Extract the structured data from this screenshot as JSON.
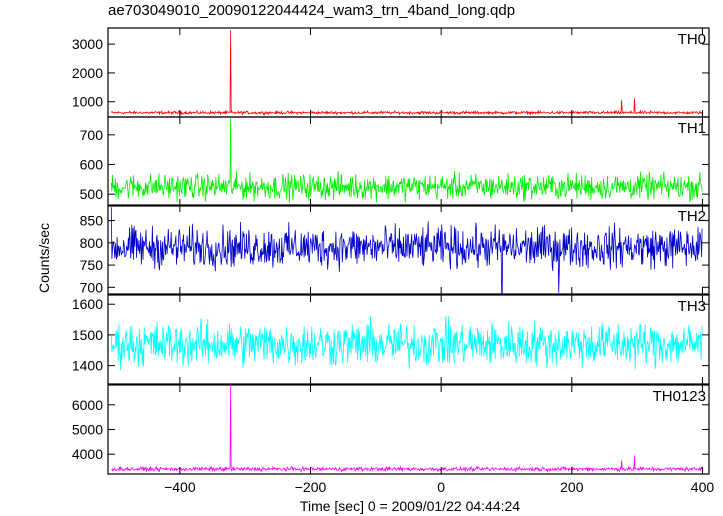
{
  "title": "ae703049010_20090122044424_wam3_trn_4band_long.qdp",
  "ylabel": "Counts/sec",
  "xlabel": "Time [sec] 0 = 2009/01/22 04:44:24",
  "chart_data": {
    "type": "line",
    "title": "ae703049010_20090122044424_wam3_trn_4band_long.qdp",
    "xlabel": "Time [sec] 0 = 2009/01/22 04:44:24",
    "ylabel": "Counts/sec",
    "xlim": [
      -510,
      410
    ],
    "xticks": [
      -400,
      -200,
      0,
      200,
      400
    ],
    "grid": false,
    "legend": "none",
    "panels": [
      {
        "name": "TH0",
        "color": "#ff0000",
        "ylim": [
          470,
          3560
        ],
        "yticks": [
          1000,
          2000,
          3000
        ],
        "baseline": 620,
        "noise": 35,
        "spikes": [
          {
            "x": -322,
            "y": 3480
          },
          {
            "x": 276,
            "y": 1050
          },
          {
            "x": 296,
            "y": 1120
          }
        ]
      },
      {
        "name": "TH1",
        "color": "#00ee00",
        "ylim": [
          460,
          760
        ],
        "yticks": [
          500,
          600,
          700
        ],
        "baseline": 525,
        "noise": 30,
        "spikes": [
          {
            "x": -322,
            "y": 755
          }
        ]
      },
      {
        "name": "TH2",
        "color": "#0000cc",
        "ylim": [
          685,
          885
        ],
        "yticks": [
          700,
          750,
          800,
          850
        ],
        "baseline": 790,
        "noise": 32,
        "spikes": [
          {
            "x": -505,
            "y": 880
          },
          {
            "x": 93,
            "y": 685
          },
          {
            "x": 180,
            "y": 688
          }
        ]
      },
      {
        "name": "TH3",
        "color": "#00ffff",
        "ylim": [
          1340,
          1630
        ],
        "yticks": [
          1400,
          1500,
          1600
        ],
        "baseline": 1470,
        "noise": 50,
        "spikes": []
      },
      {
        "name": "TH0123",
        "color": "#ff00ff",
        "ylim": [
          3200,
          6800
        ],
        "yticks": [
          4000,
          5000,
          6000
        ],
        "baseline": 3400,
        "noise": 55,
        "spikes": [
          {
            "x": -322,
            "y": 6750
          },
          {
            "x": 276,
            "y": 3750
          },
          {
            "x": 296,
            "y": 3950
          }
        ]
      }
    ]
  }
}
